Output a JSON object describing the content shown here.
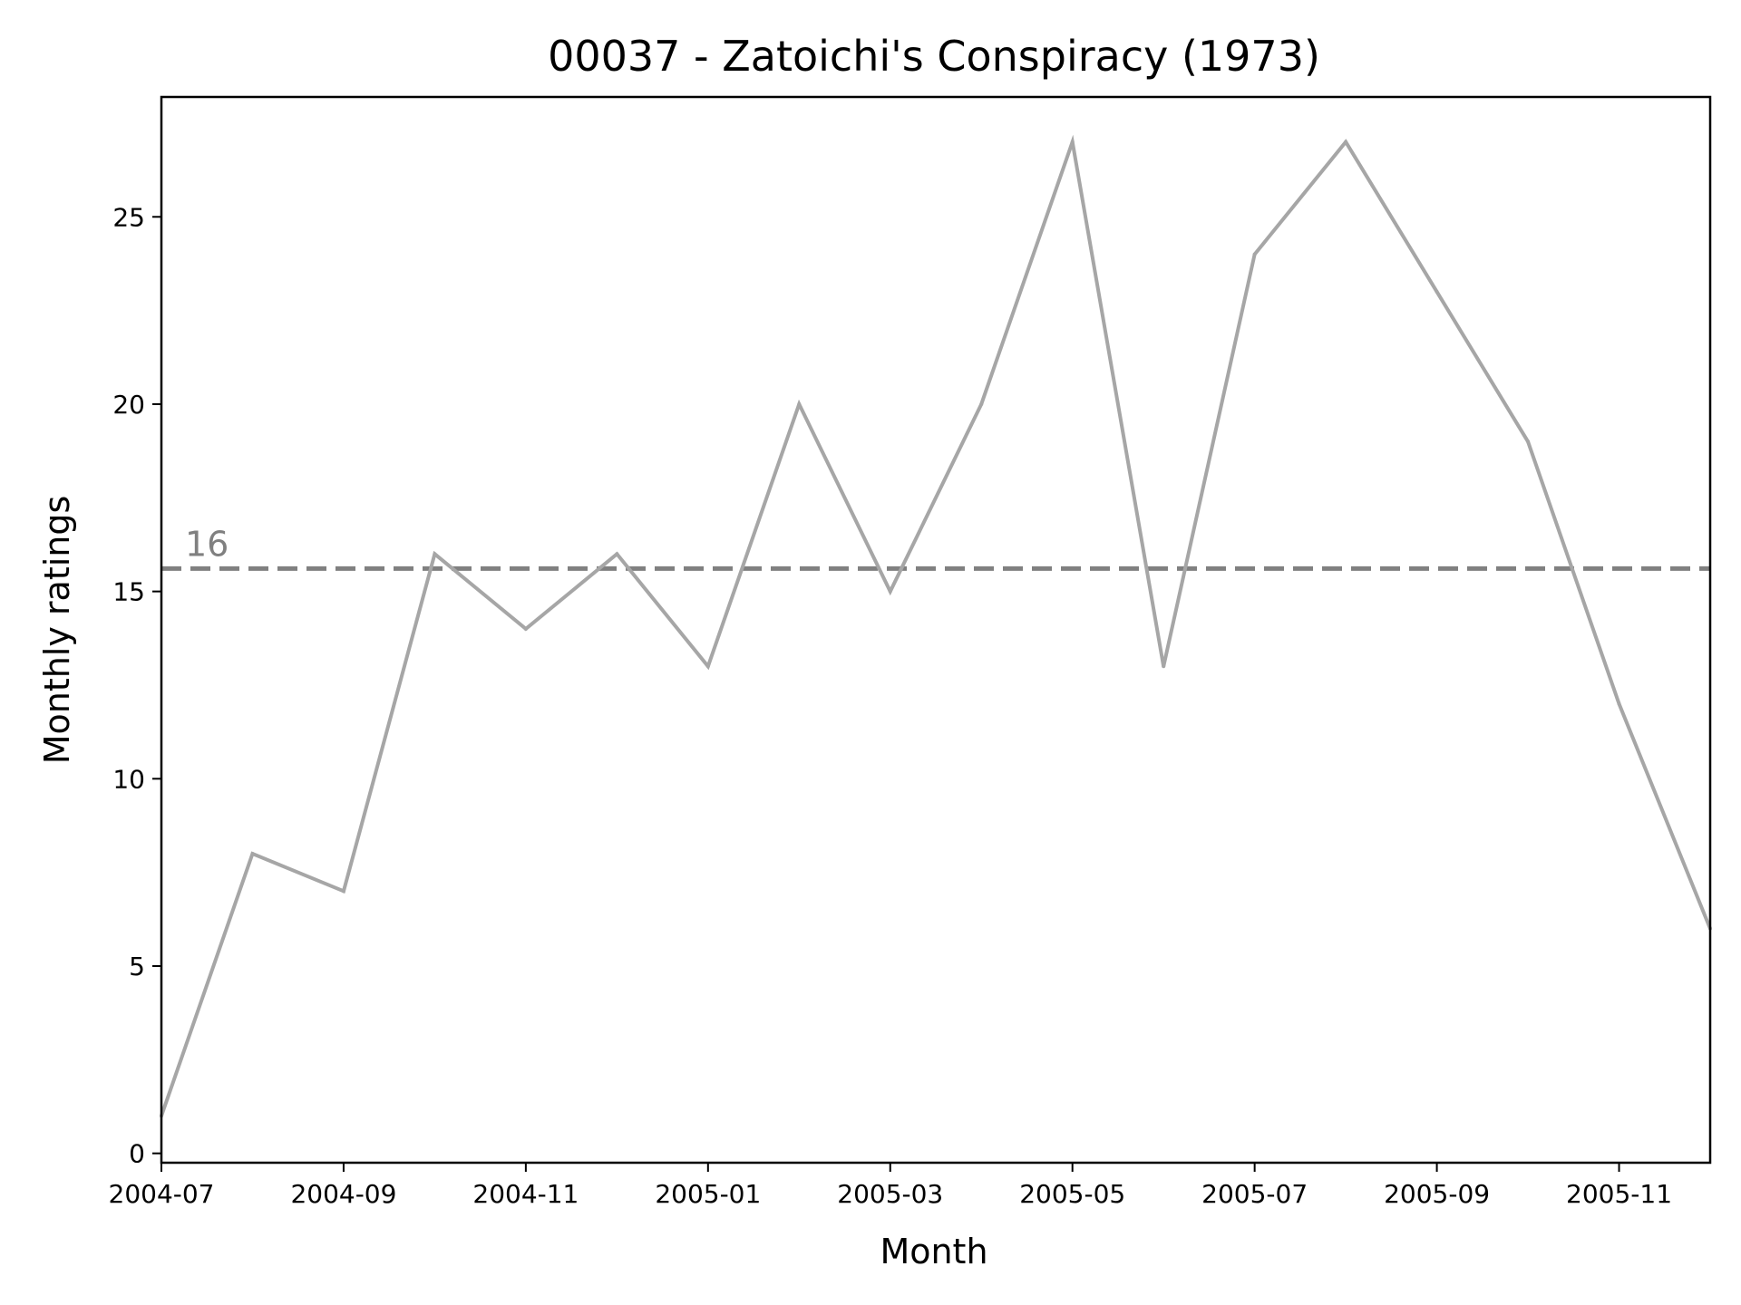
{
  "chart_data": {
    "type": "line",
    "title": "00037 - Zatoichi's Conspiracy (1973)",
    "xlabel": "Month",
    "ylabel": "Monthly ratings",
    "x": [
      "2004-07",
      "2004-08",
      "2004-09",
      "2004-10",
      "2004-11",
      "2004-12",
      "2005-01",
      "2005-02",
      "2005-03",
      "2005-04",
      "2005-05",
      "2005-06",
      "2005-07",
      "2005-08",
      "2005-09",
      "2005-10",
      "2005-11",
      "2005-12"
    ],
    "series": [
      {
        "values": [
          1,
          8,
          7,
          16,
          14,
          16,
          13,
          20,
          15,
          20,
          27,
          13,
          24,
          27,
          23,
          19,
          12,
          6
        ],
        "color": "#a6a6a6"
      }
    ],
    "reference_line": {
      "value": 15.61,
      "label": "16",
      "style": "dashed",
      "color": "#808080"
    },
    "x_ticks": [
      "2004-07",
      "2004-09",
      "2004-11",
      "2005-01",
      "2005-03",
      "2005-05",
      "2005-07",
      "2005-09",
      "2005-11"
    ],
    "y_ticks": [
      0,
      5,
      10,
      15,
      20,
      25
    ],
    "ylim": [
      -0.25,
      28.2
    ],
    "xlim": [
      "2004-07",
      "2005-12"
    ],
    "grid": false
  }
}
